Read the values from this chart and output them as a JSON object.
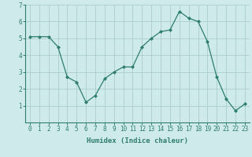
{
  "x": [
    0,
    1,
    2,
    3,
    4,
    5,
    6,
    7,
    8,
    9,
    10,
    11,
    12,
    13,
    14,
    15,
    16,
    17,
    18,
    19,
    20,
    21,
    22,
    23
  ],
  "y": [
    5.1,
    5.1,
    5.1,
    4.5,
    2.7,
    2.4,
    1.2,
    1.6,
    2.6,
    3.0,
    3.3,
    3.3,
    4.5,
    5.0,
    5.4,
    5.5,
    6.6,
    6.2,
    6.0,
    4.8,
    2.7,
    1.4,
    0.7,
    1.1
  ],
  "xlabel": "Humidex (Indice chaleur)",
  "xlim": [
    -0.5,
    23.5
  ],
  "ylim": [
    0,
    7
  ],
  "yticks": [
    1,
    2,
    3,
    4,
    5,
    6,
    7
  ],
  "xticks": [
    0,
    1,
    2,
    3,
    4,
    5,
    6,
    7,
    8,
    9,
    10,
    11,
    12,
    13,
    14,
    15,
    16,
    17,
    18,
    19,
    20,
    21,
    22,
    23
  ],
  "line_color": "#2e7d6e",
  "marker": "D",
  "marker_size": 2.0,
  "bg_color": "#ceeaea",
  "grid_color": "#aacecc",
  "xlabel_fontsize": 6.5,
  "tick_fontsize": 5.5,
  "line_width": 0.9
}
